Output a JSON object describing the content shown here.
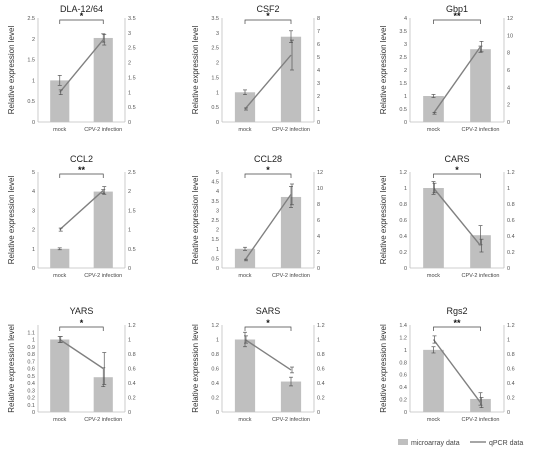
{
  "chart_data": [
    {
      "type": "bar",
      "title": "DLA-12/64",
      "ylabel": "Relative expression level",
      "categories": [
        "mock",
        "CPV-2 infection"
      ],
      "series": [
        {
          "name": "microarray data",
          "values": [
            1.0,
            2.02
          ],
          "errors": [
            0.12,
            0.1
          ]
        },
        {
          "name": "qPCR data",
          "values": [
            1.0,
            2.77
          ],
          "errors": [
            0.08,
            0.18
          ]
        }
      ],
      "ylim_left": [
        0,
        2.5
      ],
      "yticks_left": [
        "0",
        "0.5",
        "1",
        "1.5",
        "2",
        "2.5"
      ],
      "ylim_right": [
        0,
        3.5
      ],
      "yticks_right": [
        "0",
        "0.5",
        "1",
        "1.5",
        "2",
        "2.5",
        "3",
        "3.5"
      ],
      "significance": "*"
    },
    {
      "type": "bar",
      "title": "CSF2",
      "ylabel": "Relative expression level",
      "categories": [
        "mock",
        "CPV-2 infection"
      ],
      "series": [
        {
          "name": "microarray data",
          "values": [
            1.0,
            2.87
          ],
          "errors": [
            0.08,
            0.2
          ]
        },
        {
          "name": "qPCR data",
          "values": [
            1.0,
            5.15
          ],
          "errors": [
            0.08,
            1.15
          ]
        }
      ],
      "ylim_left": [
        0,
        3.5
      ],
      "yticks_left": [
        "0",
        "0.5",
        "1",
        "1.5",
        "2",
        "2.5",
        "3",
        "3.5"
      ],
      "ylim_right": [
        0,
        8
      ],
      "yticks_right": [
        "0",
        "1",
        "2",
        "3",
        "4",
        "5",
        "6",
        "7",
        "8"
      ],
      "significance": "*"
    },
    {
      "type": "bar",
      "title": "Gbp1",
      "ylabel": "Relative expression level",
      "categories": [
        "mock",
        "CPV-2 infection"
      ],
      "series": [
        {
          "name": "microarray data",
          "values": [
            1.0,
            2.8
          ],
          "errors": [
            0.06,
            0.12
          ]
        },
        {
          "name": "qPCR data",
          "values": [
            1.0,
            8.7
          ],
          "errors": [
            0.1,
            0.6
          ]
        }
      ],
      "ylim_left": [
        0,
        4
      ],
      "yticks_left": [
        "0",
        "0.5",
        "1",
        "1.5",
        "2",
        "2.5",
        "3",
        "3.5",
        "4"
      ],
      "ylim_right": [
        0,
        12
      ],
      "yticks_right": [
        "0",
        "2",
        "4",
        "6",
        "8",
        "10",
        "12"
      ],
      "significance": "**"
    },
    {
      "type": "bar",
      "title": "CCL2",
      "ylabel": "Relative expression level",
      "categories": [
        "mock",
        "CPV-2 infection"
      ],
      "series": [
        {
          "name": "microarray data",
          "values": [
            1.0,
            3.98
          ],
          "errors": [
            0.05,
            0.1
          ]
        },
        {
          "name": "qPCR data",
          "values": [
            1.0,
            2.02
          ],
          "errors": [
            0.04,
            0.1
          ]
        }
      ],
      "ylim_left": [
        0,
        5
      ],
      "yticks_left": [
        "0",
        "1",
        "2",
        "3",
        "4",
        "5"
      ],
      "ylim_right": [
        0,
        2.5
      ],
      "yticks_right": [
        "0",
        "0.5",
        "1",
        "1.5",
        "2",
        "2.5"
      ],
      "significance": "**"
    },
    {
      "type": "bar",
      "title": "CCL28",
      "ylabel": "Relative expression level",
      "categories": [
        "mock",
        "CPV-2 infection"
      ],
      "series": [
        {
          "name": "microarray data",
          "values": [
            1.0,
            3.7
          ],
          "errors": [
            0.08,
            0.55
          ]
        },
        {
          "name": "qPCR data",
          "values": [
            1.0,
            9.2
          ],
          "errors": [
            0.1,
            1.3
          ]
        }
      ],
      "ylim_left": [
        0,
        5
      ],
      "yticks_left": [
        "0",
        "0.5",
        "1",
        "1.5",
        "2",
        "2.5",
        "3",
        "3.5",
        "4",
        "4.5",
        "5"
      ],
      "ylim_right": [
        0,
        12
      ],
      "yticks_right": [
        "0",
        "2",
        "4",
        "6",
        "8",
        "10",
        "12"
      ],
      "significance": "*"
    },
    {
      "type": "bar",
      "title": "CARS",
      "ylabel": "Relative expression level",
      "categories": [
        "mock",
        "CPV-2 infection"
      ],
      "series": [
        {
          "name": "microarray data",
          "values": [
            1.0,
            0.41
          ],
          "errors": [
            0.08,
            0.12
          ]
        },
        {
          "name": "qPCR data",
          "values": [
            1.0,
            0.28
          ],
          "errors": [
            0.06,
            0.08
          ]
        }
      ],
      "ylim_left": [
        0,
        1.2
      ],
      "yticks_left": [
        "0",
        "0.2",
        "0.4",
        "0.6",
        "0.8",
        "1",
        "1.2"
      ],
      "ylim_right": [
        0,
        1.2
      ],
      "yticks_right": [
        "0",
        "0.2",
        "0.4",
        "0.6",
        "0.8",
        "1",
        "1.2"
      ],
      "significance": "*"
    },
    {
      "type": "bar",
      "title": "YARS",
      "ylabel": "Relative expression level",
      "categories": [
        "mock",
        "CPV-2 infection"
      ],
      "series": [
        {
          "name": "microarray data",
          "values": [
            1.0,
            0.48
          ],
          "errors": [
            0.04,
            0.13
          ]
        },
        {
          "name": "qPCR data",
          "values": [
            1.0,
            0.6
          ],
          "errors": [
            0.04,
            0.22
          ]
        }
      ],
      "ylim_left": [
        0,
        1.2
      ],
      "yticks_left": [
        "0",
        "0.1",
        "0.2",
        "0.3",
        "0.4",
        "0.5",
        "0.6",
        "0.7",
        "0.8",
        "0.9",
        "1",
        "1.1"
      ],
      "ylim_right": [
        0,
        1.2
      ],
      "yticks_right": [
        "0",
        "0.2",
        "0.4",
        "0.6",
        "0.8",
        "1",
        "1.2"
      ],
      "significance": "*"
    },
    {
      "type": "bar",
      "title": "SARS",
      "ylabel": "Relative expression level",
      "categories": [
        "mock",
        "CPV-2 infection"
      ],
      "series": [
        {
          "name": "microarray data",
          "values": [
            1.0,
            0.42
          ],
          "errors": [
            0.1,
            0.06
          ]
        },
        {
          "name": "qPCR data",
          "values": [
            1.0,
            0.58
          ],
          "errors": [
            0.05,
            0.04
          ]
        }
      ],
      "ylim_left": [
        0,
        1.2
      ],
      "yticks_left": [
        "0",
        "0.2",
        "0.4",
        "0.6",
        "0.8",
        "1",
        "1.2"
      ],
      "ylim_right": [
        0,
        1.2
      ],
      "yticks_right": [
        "0",
        "0.2",
        "0.4",
        "0.6",
        "0.8",
        "1",
        "1.2"
      ],
      "significance": "*"
    },
    {
      "type": "bar",
      "title": "Rgs2",
      "ylabel": "Relative expression level",
      "categories": [
        "mock",
        "CPV-2 infection"
      ],
      "series": [
        {
          "name": "microarray data",
          "values": [
            1.0,
            0.21
          ],
          "errors": [
            0.05,
            0.1
          ]
        },
        {
          "name": "qPCR data",
          "values": [
            1.0,
            0.13
          ],
          "errors": [
            0.05,
            0.07
          ]
        }
      ],
      "ylim_left": [
        0,
        1.4
      ],
      "yticks_left": [
        "0",
        "0.2",
        "0.4",
        "0.6",
        "0.8",
        "1",
        "1.2",
        "1.4"
      ],
      "ylim_right": [
        0,
        1.2
      ],
      "yticks_right": [
        "0",
        "0.2",
        "0.4",
        "0.6",
        "0.8",
        "1",
        "1.2"
      ],
      "significance": "**"
    }
  ],
  "legend": {
    "placement": "bottom-right",
    "bar_label": "microarray data",
    "line_label": "qPCR data"
  },
  "colors": {
    "bar": "#bfbfbf",
    "line": "#808080",
    "axis": "#bfbfbf",
    "text": "#333333"
  }
}
